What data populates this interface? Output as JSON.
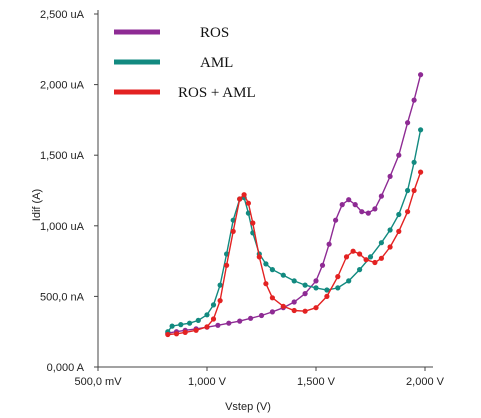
{
  "chart_data": {
    "type": "line",
    "title": "",
    "xlabel": "Vstep (V)",
    "ylabel": "Idif (A)",
    "xlim": [
      0.5,
      2.0
    ],
    "ylim": [
      0,
      2500
    ],
    "x_ticks": [
      {
        "value": 0.5,
        "label": "500,0 mV"
      },
      {
        "value": 1.0,
        "label": "1,000 V"
      },
      {
        "value": 1.5,
        "label": "1,500 V"
      },
      {
        "value": 2.0,
        "label": "2,000 V"
      }
    ],
    "y_ticks": [
      {
        "value": 0,
        "label": "0,000 A"
      },
      {
        "value": 500,
        "label": "500,0 nA"
      },
      {
        "value": 1000,
        "label": "1,000 uA"
      },
      {
        "value": 1500,
        "label": "1,500 uA"
      },
      {
        "value": 2000,
        "label": "2,000 uA"
      },
      {
        "value": 2500,
        "label": "2,500 uA"
      }
    ],
    "grid": false,
    "legend_position": "top-left",
    "series": [
      {
        "name": "ROS",
        "color": "#8e2b94",
        "points": [
          [
            0.82,
            240
          ],
          [
            0.86,
            250
          ],
          [
            0.9,
            260
          ],
          [
            0.95,
            270
          ],
          [
            1.0,
            282
          ],
          [
            1.05,
            295
          ],
          [
            1.1,
            310
          ],
          [
            1.15,
            325
          ],
          [
            1.2,
            345
          ],
          [
            1.25,
            365
          ],
          [
            1.3,
            390
          ],
          [
            1.35,
            420
          ],
          [
            1.4,
            460
          ],
          [
            1.45,
            520
          ],
          [
            1.5,
            610
          ],
          [
            1.53,
            720
          ],
          [
            1.56,
            870
          ],
          [
            1.59,
            1040
          ],
          [
            1.62,
            1150
          ],
          [
            1.65,
            1185
          ],
          [
            1.68,
            1150
          ],
          [
            1.71,
            1100
          ],
          [
            1.74,
            1090
          ],
          [
            1.77,
            1120
          ],
          [
            1.8,
            1210
          ],
          [
            1.84,
            1350
          ],
          [
            1.88,
            1500
          ],
          [
            1.92,
            1730
          ],
          [
            1.95,
            1890
          ],
          [
            1.98,
            2070
          ]
        ]
      },
      {
        "name": "AML",
        "color": "#128a80",
        "points": [
          [
            0.82,
            250
          ],
          [
            0.84,
            290
          ],
          [
            0.88,
            300
          ],
          [
            0.92,
            310
          ],
          [
            0.96,
            330
          ],
          [
            1.0,
            370
          ],
          [
            1.03,
            440
          ],
          [
            1.06,
            580
          ],
          [
            1.09,
            800
          ],
          [
            1.12,
            1040
          ],
          [
            1.15,
            1190
          ],
          [
            1.17,
            1200
          ],
          [
            1.19,
            1090
          ],
          [
            1.21,
            950
          ],
          [
            1.24,
            800
          ],
          [
            1.27,
            730
          ],
          [
            1.3,
            690
          ],
          [
            1.35,
            650
          ],
          [
            1.4,
            610
          ],
          [
            1.45,
            580
          ],
          [
            1.5,
            560
          ],
          [
            1.55,
            545
          ],
          [
            1.6,
            560
          ],
          [
            1.65,
            610
          ],
          [
            1.7,
            690
          ],
          [
            1.75,
            780
          ],
          [
            1.8,
            880
          ],
          [
            1.84,
            970
          ],
          [
            1.88,
            1080
          ],
          [
            1.92,
            1250
          ],
          [
            1.95,
            1450
          ],
          [
            1.98,
            1680
          ]
        ]
      },
      {
        "name": "ROS + AML",
        "color": "#e32222",
        "points": [
          [
            0.82,
            230
          ],
          [
            0.86,
            235
          ],
          [
            0.9,
            245
          ],
          [
            0.95,
            260
          ],
          [
            1.0,
            285
          ],
          [
            1.03,
            340
          ],
          [
            1.06,
            470
          ],
          [
            1.09,
            720
          ],
          [
            1.12,
            960
          ],
          [
            1.15,
            1190
          ],
          [
            1.17,
            1220
          ],
          [
            1.19,
            1160
          ],
          [
            1.21,
            1020
          ],
          [
            1.24,
            780
          ],
          [
            1.27,
            590
          ],
          [
            1.3,
            490
          ],
          [
            1.35,
            430
          ],
          [
            1.4,
            400
          ],
          [
            1.45,
            395
          ],
          [
            1.5,
            420
          ],
          [
            1.55,
            500
          ],
          [
            1.6,
            640
          ],
          [
            1.64,
            780
          ],
          [
            1.67,
            820
          ],
          [
            1.7,
            800
          ],
          [
            1.73,
            760
          ],
          [
            1.77,
            740
          ],
          [
            1.8,
            770
          ],
          [
            1.84,
            850
          ],
          [
            1.88,
            960
          ],
          [
            1.92,
            1100
          ],
          [
            1.95,
            1250
          ],
          [
            1.98,
            1380
          ]
        ]
      }
    ]
  }
}
